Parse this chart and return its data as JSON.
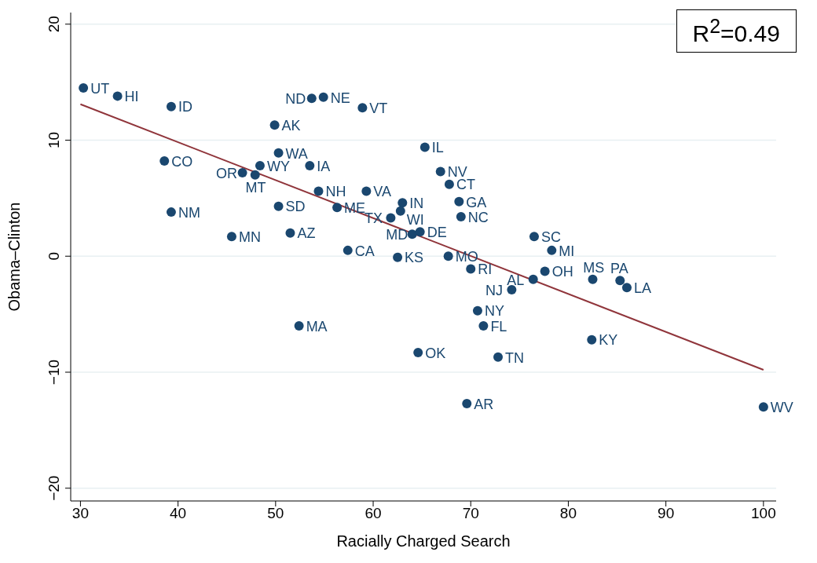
{
  "chart_data": {
    "type": "scatter",
    "xlabel": "Racially Charged Search",
    "ylabel": "Obama–Clinton",
    "xlim": [
      29,
      101.3
    ],
    "ylim": [
      -21.1,
      21
    ],
    "xticks": [
      30,
      40,
      50,
      60,
      70,
      80,
      90,
      100
    ],
    "yticks": [
      {
        "value": -20,
        "label": "−20"
      },
      {
        "value": -10,
        "label": "−10"
      },
      0,
      10,
      20
    ],
    "grid": "y",
    "marker": "circle",
    "line_style": "solid",
    "series": [
      {
        "color": "#1a476f",
        "x": [
          30.3,
          33.8,
          39.3,
          49.9,
          53.7,
          54.9,
          58.9,
          65.3,
          38.6,
          50.3,
          48.4,
          53.5,
          46.6,
          47.9,
          66.9,
          67.8,
          54.4,
          59.3,
          68.8,
          39.3,
          50.3,
          56.3,
          63.0,
          62.8,
          61.8,
          69.0,
          64.0,
          64.8,
          45.5,
          51.5,
          76.5,
          78.3,
          57.4,
          62.5,
          67.7,
          70.0,
          77.6,
          76.4,
          74.2,
          82.5,
          85.3,
          86.0,
          70.7,
          71.3,
          52.4,
          82.4,
          64.6,
          72.8,
          69.6,
          100
        ],
        "values": [
          14.5,
          13.8,
          12.9,
          11.3,
          13.6,
          13.7,
          12.8,
          9.4,
          8.2,
          8.9,
          7.8,
          7.8,
          7.2,
          7.0,
          7.3,
          6.2,
          5.6,
          5.6,
          4.7,
          3.8,
          4.3,
          4.2,
          4.6,
          3.9,
          3.3,
          3.4,
          1.9,
          2.1,
          1.7,
          2.0,
          1.7,
          0.5,
          0.5,
          -0.1,
          0.0,
          -1.1,
          -1.3,
          -2.0,
          -2.9,
          -2.0,
          -2.1,
          -2.7,
          -4.7,
          -6.0,
          -6.0,
          -7.2,
          -8.3,
          -8.7,
          -12.7,
          -13.0
        ]
      },
      {
        "type": "line",
        "color": "#90353b",
        "marker": "none",
        "x": [
          30,
          100
        ],
        "values": [
          13.1,
          -9.8
        ]
      }
    ],
    "annotations": [
      "R$^{2}$=0.49",
      {
        "text": "UT",
        "x": 30.3,
        "y": 14.5
      },
      {
        "text": "HI",
        "x": 33.8,
        "y": 13.8
      },
      {
        "text": "ID",
        "x": 39.3,
        "y": 12.9
      },
      {
        "text": "AK",
        "x": 49.9,
        "y": 11.3
      },
      {
        "text": "ND",
        "x": 53.7,
        "y": 13.6
      },
      {
        "text": "NE",
        "x": 54.9,
        "y": 13.7
      },
      {
        "text": "VT",
        "x": 58.9,
        "y": 12.8
      },
      {
        "text": "IL",
        "x": 65.3,
        "y": 9.4
      },
      {
        "text": "CO",
        "x": 38.6,
        "y": 8.2
      },
      {
        "text": "WA",
        "x": 50.3,
        "y": 8.9
      },
      {
        "text": "WY",
        "x": 48.4,
        "y": 7.8
      },
      {
        "text": "IA",
        "x": 53.5,
        "y": 7.8
      },
      {
        "text": "OR",
        "x": 46.6,
        "y": 7.2
      },
      {
        "text": "MT",
        "x": 47.9,
        "y": 7.0
      },
      {
        "text": "NV",
        "x": 66.9,
        "y": 7.3
      },
      {
        "text": "CT",
        "x": 67.8,
        "y": 6.2
      },
      {
        "text": "NH",
        "x": 54.4,
        "y": 5.6
      },
      {
        "text": "VA",
        "x": 59.3,
        "y": 5.6
      },
      {
        "text": "GA",
        "x": 68.8,
        "y": 4.7
      },
      {
        "text": "NM",
        "x": 39.3,
        "y": 3.8
      },
      {
        "text": "SD",
        "x": 50.3,
        "y": 4.3
      },
      {
        "text": "ME",
        "x": 56.3,
        "y": 4.2
      },
      {
        "text": "IN",
        "x": 63.0,
        "y": 4.6
      },
      {
        "text": "WI",
        "x": 62.8,
        "y": 3.9
      },
      {
        "text": "TX",
        "x": 61.8,
        "y": 3.3
      },
      {
        "text": "NC",
        "x": 69.0,
        "y": 3.4
      },
      {
        "text": "MD",
        "x": 64.0,
        "y": 1.9
      },
      {
        "text": "DE",
        "x": 64.8,
        "y": 2.1
      },
      {
        "text": "MN",
        "x": 45.5,
        "y": 1.7
      },
      {
        "text": "AZ",
        "x": 51.5,
        "y": 2.0
      },
      {
        "text": "SC",
        "x": 76.5,
        "y": 1.7
      },
      {
        "text": "MI",
        "x": 78.3,
        "y": 0.5
      },
      {
        "text": "CA",
        "x": 57.4,
        "y": 0.5
      },
      {
        "text": "KS",
        "x": 62.5,
        "y": -0.1
      },
      {
        "text": "MO",
        "x": 67.7,
        "y": 0.0
      },
      {
        "text": "RI",
        "x": 70.0,
        "y": -1.1
      },
      {
        "text": "OH",
        "x": 77.6,
        "y": -1.3
      },
      {
        "text": "AL",
        "x": 76.4,
        "y": -2.0
      },
      {
        "text": "NJ",
        "x": 74.2,
        "y": -2.9
      },
      {
        "text": "MS",
        "x": 82.5,
        "y": -2.0
      },
      {
        "text": "PA",
        "x": 85.3,
        "y": -2.1
      },
      {
        "text": "LA",
        "x": 86.0,
        "y": -2.7
      },
      {
        "text": "NY",
        "x": 70.7,
        "y": -4.7
      },
      {
        "text": "FL",
        "x": 71.3,
        "y": -6.0
      },
      {
        "text": "MA",
        "x": 52.4,
        "y": -6.0
      },
      {
        "text": "KY",
        "x": 82.4,
        "y": -7.2
      },
      {
        "text": "OK",
        "x": 64.6,
        "y": -8.3
      },
      {
        "text": "TN",
        "x": 72.8,
        "y": -8.7
      },
      {
        "text": "AR",
        "x": 69.6,
        "y": -12.7
      },
      {
        "text": "WV",
        "x": 100,
        "y": -13.0
      }
    ]
  }
}
